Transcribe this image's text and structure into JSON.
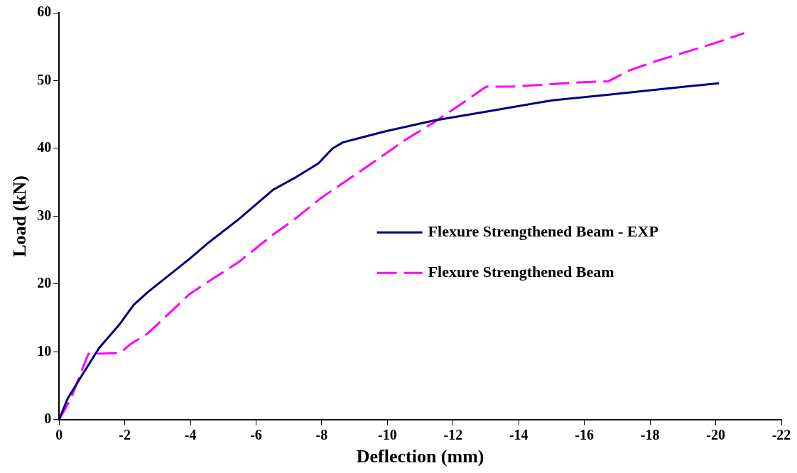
{
  "chart_data": {
    "type": "line",
    "xlabel": "Deflection (mm)",
    "ylabel": "Load (kN)",
    "xlim": [
      0,
      -22
    ],
    "xticks": [
      0,
      -2,
      -4,
      -6,
      -8,
      -10,
      -12,
      -14,
      -16,
      -18,
      -20,
      -22
    ],
    "ylim": [
      0,
      60
    ],
    "yticks": [
      0,
      10,
      20,
      30,
      40,
      50,
      60
    ],
    "grid": false,
    "legend": "right",
    "marker": "none",
    "series": [
      {
        "name": "Flexure Strengthened Beam - EXP",
        "color": "#000080",
        "line_style": "solid",
        "x": [
          0,
          -0.26,
          -0.68,
          -1.21,
          -1.85,
          -2.27,
          -2.7,
          -3.97,
          -4.5,
          -5.46,
          -5.99,
          -6.52,
          -7.16,
          -7.9,
          -8.33,
          -8.65,
          -9.93,
          -11.41,
          -13.1,
          -15.03,
          -16.7,
          -19.06,
          -20.1
        ],
        "values": [
          0,
          3.1,
          6.4,
          10.5,
          14.1,
          16.9,
          18.8,
          23.7,
          25.9,
          29.5,
          31.7,
          33.9,
          35.6,
          37.8,
          40,
          40.9,
          42.5,
          44.1,
          45.5,
          47.1,
          47.9,
          49.1,
          49.6
        ]
      },
      {
        "name": "Flexure Strengthened Beam",
        "color": "#ff00ff",
        "line_style": "dashed",
        "x": [
          0,
          -0.36,
          -0.89,
          -1.85,
          -2.17,
          -2.7,
          -3.97,
          -4.5,
          -5.46,
          -6.52,
          -7.16,
          -8.01,
          -9.29,
          -10.56,
          -11.41,
          -12.26,
          -13.01,
          -13.75,
          -14.81,
          -15.66,
          -16.73,
          -17.37,
          -18.2,
          -19.9,
          -20.87
        ],
        "values": [
          0,
          3.1,
          9.7,
          9.8,
          11.1,
          12.7,
          18.5,
          20.2,
          23.2,
          27.3,
          29.5,
          32.8,
          37,
          41.3,
          43.8,
          46.6,
          49.1,
          49.1,
          49.4,
          49.7,
          49.9,
          51.5,
          52.9,
          55.4,
          57
        ]
      }
    ]
  }
}
